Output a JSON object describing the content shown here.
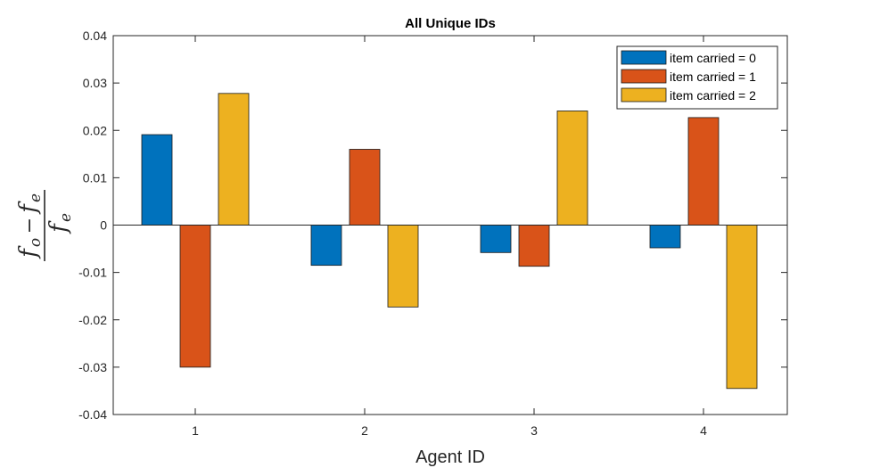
{
  "chart_data": {
    "type": "bar",
    "title": "All Unique IDs",
    "xlabel": "Agent ID",
    "ylabel": {
      "numerator_main": "f",
      "numerator_sub1": "o",
      "minus": "−",
      "numerator_main2": "f",
      "numerator_sub2": "e",
      "denominator_main": "f",
      "denominator_sub": "e"
    },
    "categories": [
      "1",
      "2",
      "3",
      "4"
    ],
    "ylim": [
      -0.04,
      0.04
    ],
    "yticks": [
      -0.04,
      -0.03,
      -0.02,
      -0.01,
      0,
      0.01,
      0.02,
      0.03,
      0.04
    ],
    "ytick_labels": [
      "-0.04",
      "-0.03",
      "-0.02",
      "-0.01",
      "0",
      "0.01",
      "0.02",
      "0.03",
      "0.04"
    ],
    "series": [
      {
        "name": "item carried = 0",
        "color": "#0072BD",
        "values": [
          0.0191,
          -0.0085,
          -0.0058,
          -0.0048
        ]
      },
      {
        "name": "item carried = 1",
        "color": "#D95319",
        "values": [
          -0.03,
          0.016,
          -0.0087,
          0.0227
        ]
      },
      {
        "name": "item carried = 2",
        "color": "#EDB120",
        "values": [
          0.0278,
          -0.0173,
          0.0241,
          -0.0345
        ]
      }
    ],
    "legend_position": "top-right",
    "grid": false
  }
}
